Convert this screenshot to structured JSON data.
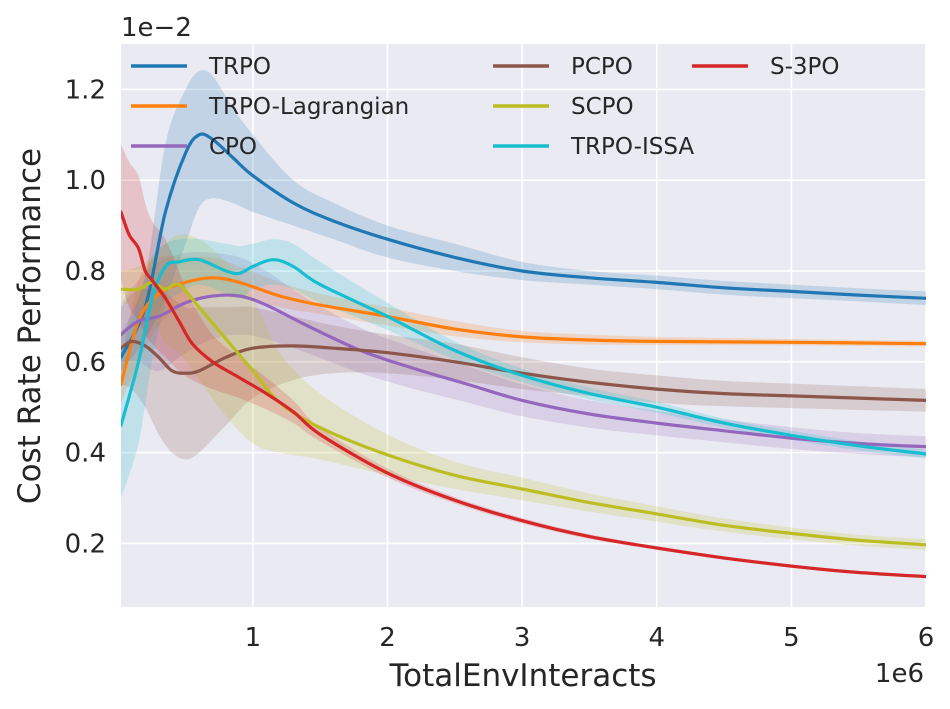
{
  "chart_data": {
    "type": "line",
    "title": "",
    "xlabel": "TotalEnvInteracts",
    "ylabel": "Cost Rate Performance",
    "x_multiplier_label": "1e6",
    "y_multiplier_label": "1e−2",
    "xlim": [
      0.02,
      6.0
    ],
    "ylim": [
      0.06,
      1.3
    ],
    "xticks": [
      1,
      2,
      3,
      4,
      5,
      6
    ],
    "xtick_labels": [
      "1",
      "2",
      "3",
      "4",
      "5",
      "6"
    ],
    "yticks": [
      0.2,
      0.4,
      0.6,
      0.8,
      1.0,
      1.2
    ],
    "ytick_labels": [
      "0.2",
      "0.4",
      "0.6",
      "0.8",
      "1.0",
      "1.2"
    ],
    "grid": true,
    "legend_position": "top",
    "colors": {
      "background": "#eaeaf2",
      "grid": "#ffffff",
      "TRPO": "#1f77b4",
      "TRPO-Lagrangian": "#ff7f0e",
      "CPO": "#9467bd",
      "PCPO": "#8c564b",
      "SCPO": "#bcbd22",
      "TRPO-ISSA": "#17becf",
      "S-3PO": "#d62728"
    },
    "series": [
      {
        "name": "TRPO",
        "x": [
          0.02,
          0.2,
          0.35,
          0.5,
          0.6,
          0.7,
          0.85,
          1.0,
          1.3,
          1.6,
          2.0,
          2.5,
          3.0,
          3.5,
          4.0,
          4.5,
          5.0,
          5.5,
          6.0
        ],
        "y": [
          0.61,
          0.72,
          0.93,
          1.06,
          1.1,
          1.09,
          1.05,
          1.01,
          0.95,
          0.91,
          0.87,
          0.83,
          0.8,
          0.785,
          0.775,
          0.763,
          0.755,
          0.747,
          0.74
        ],
        "lower": [
          0.58,
          0.65,
          0.74,
          0.86,
          0.94,
          0.96,
          0.95,
          0.93,
          0.9,
          0.87,
          0.83,
          0.8,
          0.78,
          0.77,
          0.76,
          0.748,
          0.74,
          0.733,
          0.725
        ],
        "upper": [
          0.66,
          0.79,
          1.08,
          1.2,
          1.24,
          1.23,
          1.16,
          1.1,
          1.0,
          0.95,
          0.9,
          0.86,
          0.82,
          0.8,
          0.79,
          0.778,
          0.77,
          0.762,
          0.755
        ]
      },
      {
        "name": "TRPO-Lagrangian",
        "x": [
          0.02,
          0.15,
          0.3,
          0.5,
          0.7,
          0.9,
          1.2,
          1.5,
          2.0,
          2.5,
          3.0,
          3.5,
          4.0,
          5.0,
          6.0
        ],
        "y": [
          0.55,
          0.69,
          0.75,
          0.775,
          0.785,
          0.775,
          0.745,
          0.725,
          0.7,
          0.672,
          0.655,
          0.648,
          0.645,
          0.643,
          0.64
        ],
        "lower": [
          0.51,
          0.6,
          0.68,
          0.73,
          0.75,
          0.745,
          0.72,
          0.705,
          0.68,
          0.656,
          0.643,
          0.638,
          0.637,
          0.636,
          0.634
        ],
        "upper": [
          0.6,
          0.78,
          0.83,
          0.83,
          0.83,
          0.81,
          0.775,
          0.75,
          0.72,
          0.69,
          0.668,
          0.66,
          0.655,
          0.65,
          0.646
        ]
      },
      {
        "name": "CPO",
        "x": [
          0.02,
          0.15,
          0.3,
          0.5,
          0.7,
          0.9,
          1.1,
          1.4,
          1.8,
          2.2,
          2.6,
          3.0,
          3.5,
          4.0,
          4.5,
          5.0,
          5.5,
          6.0
        ],
        "y": [
          0.66,
          0.69,
          0.7,
          0.73,
          0.745,
          0.745,
          0.725,
          0.68,
          0.625,
          0.585,
          0.55,
          0.515,
          0.485,
          0.465,
          0.448,
          0.432,
          0.42,
          0.413
        ],
        "lower": [
          0.6,
          0.6,
          0.58,
          0.62,
          0.65,
          0.66,
          0.65,
          0.62,
          0.575,
          0.54,
          0.51,
          0.48,
          0.455,
          0.438,
          0.423,
          0.408,
          0.397,
          0.39
        ],
        "upper": [
          0.73,
          0.78,
          0.82,
          0.84,
          0.84,
          0.83,
          0.8,
          0.74,
          0.675,
          0.63,
          0.59,
          0.55,
          0.515,
          0.492,
          0.473,
          0.456,
          0.443,
          0.436
        ]
      },
      {
        "name": "PCPO",
        "x": [
          0.02,
          0.1,
          0.2,
          0.3,
          0.4,
          0.5,
          0.6,
          0.8,
          1.0,
          1.3,
          1.6,
          2.0,
          2.5,
          3.0,
          3.5,
          4.0,
          4.5,
          5.0,
          5.5,
          6.0
        ],
        "y": [
          0.63,
          0.645,
          0.635,
          0.61,
          0.58,
          0.575,
          0.58,
          0.61,
          0.63,
          0.635,
          0.63,
          0.62,
          0.6,
          0.575,
          0.555,
          0.54,
          0.53,
          0.525,
          0.52,
          0.515
        ],
        "lower": [
          0.55,
          0.54,
          0.5,
          0.44,
          0.4,
          0.385,
          0.4,
          0.46,
          0.52,
          0.56,
          0.575,
          0.575,
          0.56,
          0.54,
          0.525,
          0.51,
          0.502,
          0.498,
          0.494,
          0.49
        ],
        "upper": [
          0.72,
          0.75,
          0.76,
          0.76,
          0.74,
          0.72,
          0.72,
          0.72,
          0.72,
          0.7,
          0.68,
          0.66,
          0.64,
          0.61,
          0.585,
          0.57,
          0.558,
          0.552,
          0.546,
          0.54
        ]
      },
      {
        "name": "SCPO",
        "x": [
          0.02,
          0.15,
          0.25,
          0.35,
          0.45,
          0.6,
          0.8,
          1.0,
          1.2,
          1.5,
          2.0,
          2.5,
          3.0,
          3.5,
          4.0,
          4.5,
          5.0,
          5.5,
          6.0
        ],
        "y": [
          0.76,
          0.76,
          0.775,
          0.76,
          0.77,
          0.72,
          0.65,
          0.58,
          0.51,
          0.455,
          0.395,
          0.35,
          0.32,
          0.29,
          0.265,
          0.24,
          0.222,
          0.207,
          0.197
        ],
        "lower": [
          0.73,
          0.72,
          0.7,
          0.64,
          0.62,
          0.56,
          0.48,
          0.42,
          0.4,
          0.385,
          0.35,
          0.32,
          0.295,
          0.27,
          0.248,
          0.226,
          0.209,
          0.195,
          0.185
        ],
        "upper": [
          0.8,
          0.81,
          0.83,
          0.86,
          0.88,
          0.87,
          0.82,
          0.74,
          0.62,
          0.53,
          0.44,
          0.38,
          0.345,
          0.31,
          0.282,
          0.255,
          0.235,
          0.219,
          0.209
        ]
      },
      {
        "name": "TRPO-ISSA",
        "x": [
          0.02,
          0.15,
          0.25,
          0.35,
          0.45,
          0.6,
          0.8,
          0.9,
          1.0,
          1.15,
          1.3,
          1.5,
          2.0,
          2.5,
          3.0,
          3.5,
          4.0,
          4.5,
          5.0,
          5.5,
          6.0
        ],
        "y": [
          0.46,
          0.6,
          0.74,
          0.81,
          0.82,
          0.825,
          0.8,
          0.795,
          0.81,
          0.825,
          0.81,
          0.77,
          0.7,
          0.625,
          0.57,
          0.53,
          0.5,
          0.465,
          0.438,
          0.415,
          0.397
        ],
        "lower": [
          0.3,
          0.42,
          0.6,
          0.72,
          0.75,
          0.77,
          0.75,
          0.74,
          0.76,
          0.77,
          0.76,
          0.73,
          0.67,
          0.605,
          0.555,
          0.517,
          0.488,
          0.455,
          0.428,
          0.405,
          0.387
        ],
        "upper": [
          0.62,
          0.74,
          0.83,
          0.86,
          0.87,
          0.87,
          0.86,
          0.855,
          0.86,
          0.87,
          0.86,
          0.82,
          0.73,
          0.645,
          0.585,
          0.543,
          0.512,
          0.475,
          0.448,
          0.425,
          0.407
        ]
      },
      {
        "name": "S-3PO",
        "x": [
          0.02,
          0.08,
          0.15,
          0.2,
          0.25,
          0.35,
          0.45,
          0.55,
          0.7,
          0.9,
          1.1,
          1.3,
          1.5,
          2.0,
          2.5,
          3.0,
          3.5,
          4.0,
          4.5,
          5.0,
          5.5,
          6.0
        ],
        "y": [
          0.93,
          0.88,
          0.85,
          0.8,
          0.78,
          0.74,
          0.69,
          0.64,
          0.6,
          0.565,
          0.53,
          0.49,
          0.44,
          0.355,
          0.295,
          0.25,
          0.215,
          0.19,
          0.168,
          0.15,
          0.136,
          0.127
        ],
        "lower": [
          0.78,
          0.72,
          0.69,
          0.66,
          0.64,
          0.61,
          0.58,
          0.56,
          0.54,
          0.52,
          0.495,
          0.465,
          0.425,
          0.345,
          0.288,
          0.244,
          0.21,
          0.186,
          0.165,
          0.147,
          0.134,
          0.125
        ],
        "upper": [
          1.08,
          1.04,
          1.01,
          0.95,
          0.91,
          0.87,
          0.8,
          0.73,
          0.66,
          0.61,
          0.565,
          0.515,
          0.455,
          0.365,
          0.302,
          0.256,
          0.22,
          0.194,
          0.171,
          0.153,
          0.138,
          0.129
        ]
      }
    ]
  }
}
